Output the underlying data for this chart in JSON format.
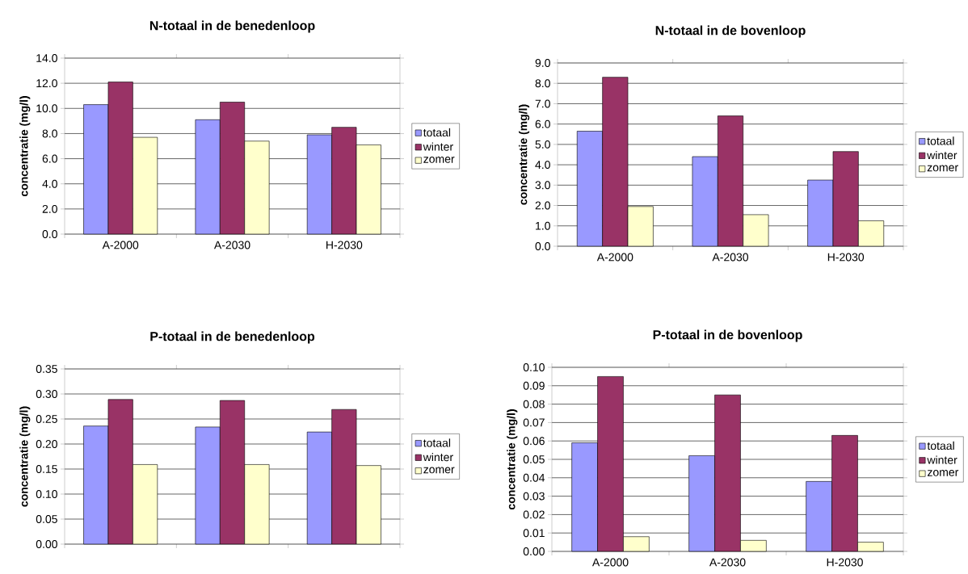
{
  "chart_data": [
    {
      "type": "bar",
      "title": "N-totaal in de benedenloop",
      "ylabel": "concentratie  (mg/l)",
      "categories": [
        "A-2000",
        "A-2030",
        "H-2030"
      ],
      "series": [
        {
          "name": "totaal",
          "color": "#9999ff",
          "values": [
            10.3,
            9.1,
            7.9
          ]
        },
        {
          "name": "winter",
          "color": "#993366",
          "values": [
            12.1,
            10.5,
            8.5
          ]
        },
        {
          "name": "zomer",
          "color": "#ffffcc",
          "values": [
            7.7,
            7.4,
            7.1
          ]
        }
      ],
      "ylim": [
        0,
        14
      ],
      "yticks": [
        {
          "value": 0,
          "label": "0.0"
        },
        {
          "value": 2,
          "label": "2.0"
        },
        {
          "value": 4,
          "label": "4.0"
        },
        {
          "value": 6,
          "label": "6.0"
        },
        {
          "value": 8,
          "label": "8.0"
        },
        {
          "value": 10,
          "label": "10.0"
        },
        {
          "value": 12,
          "label": "12.0"
        },
        {
          "value": 14,
          "label": "14.0"
        }
      ],
      "grid": "y",
      "legend": "right"
    },
    {
      "type": "bar",
      "title": "N-totaal in de bovenloop",
      "ylabel": "concentratie  (mg/l)",
      "categories": [
        "A-2000",
        "A-2030",
        "H-2030"
      ],
      "series": [
        {
          "name": "totaal",
          "color": "#9999ff",
          "values": [
            5.65,
            4.4,
            3.25
          ]
        },
        {
          "name": "winter",
          "color": "#993366",
          "values": [
            8.3,
            6.4,
            4.65
          ]
        },
        {
          "name": "zomer",
          "color": "#ffffcc",
          "values": [
            1.95,
            1.55,
            1.25
          ]
        }
      ],
      "ylim": [
        0,
        9
      ],
      "yticks": [
        {
          "value": 0,
          "label": "0.0"
        },
        {
          "value": 1,
          "label": "1.0"
        },
        {
          "value": 2,
          "label": "2.0"
        },
        {
          "value": 3,
          "label": "3.0"
        },
        {
          "value": 4,
          "label": "4.0"
        },
        {
          "value": 5,
          "label": "5.0"
        },
        {
          "value": 6,
          "label": "6.0"
        },
        {
          "value": 7,
          "label": "7.0"
        },
        {
          "value": 8,
          "label": "8.0"
        },
        {
          "value": 9,
          "label": "9.0"
        }
      ],
      "grid": "y",
      "legend": "right"
    },
    {
      "type": "bar",
      "title": "P-totaal in de benedenloop",
      "ylabel": "concentratie  (mg/l)",
      "categories": [
        null,
        null,
        null
      ],
      "series": [
        {
          "name": "totaal",
          "color": "#9999ff",
          "values": [
            0.236,
            0.234,
            0.224
          ]
        },
        {
          "name": "winter",
          "color": "#993366",
          "values": [
            0.289,
            0.287,
            0.269
          ]
        },
        {
          "name": "zomer",
          "color": "#ffffcc",
          "values": [
            0.159,
            0.159,
            0.157
          ]
        }
      ],
      "ylim": [
        0,
        0.35
      ],
      "yticks": [
        {
          "value": 0,
          "label": "0.00"
        },
        0.05,
        {
          "value": 0.1,
          "label": "0.10"
        },
        0.15,
        {
          "value": 0.2,
          "label": "0.20"
        },
        0.25,
        {
          "value": 0.3,
          "label": "0.30"
        },
        0.35
      ],
      "grid": "y",
      "legend": "right",
      "tick_labels": "y"
    },
    {
      "type": "bar",
      "title": "P-totaal in de bovenloop",
      "ylabel": "concentratie  (mg/l)",
      "categories": [
        "A-2000",
        "A-2030",
        "H-2030"
      ],
      "series": [
        {
          "name": "totaal",
          "color": "#9999ff",
          "values": [
            0.059,
            0.052,
            0.038
          ]
        },
        {
          "name": "winter",
          "color": "#993366",
          "values": [
            0.095,
            0.085,
            0.063
          ]
        },
        {
          "name": "zomer",
          "color": "#ffffcc",
          "values": [
            0.008,
            0.006,
            0.005
          ]
        }
      ],
      "ylim": [
        0,
        0.1
      ],
      "yticks": [
        {
          "value": 0,
          "label": "0.00"
        },
        0.01,
        0.02,
        0.03,
        0.04,
        0.05,
        0.06,
        0.07,
        0.08,
        0.09,
        {
          "value": 0.1,
          "label": "0.10"
        }
      ],
      "grid": "y",
      "legend": "right"
    }
  ]
}
